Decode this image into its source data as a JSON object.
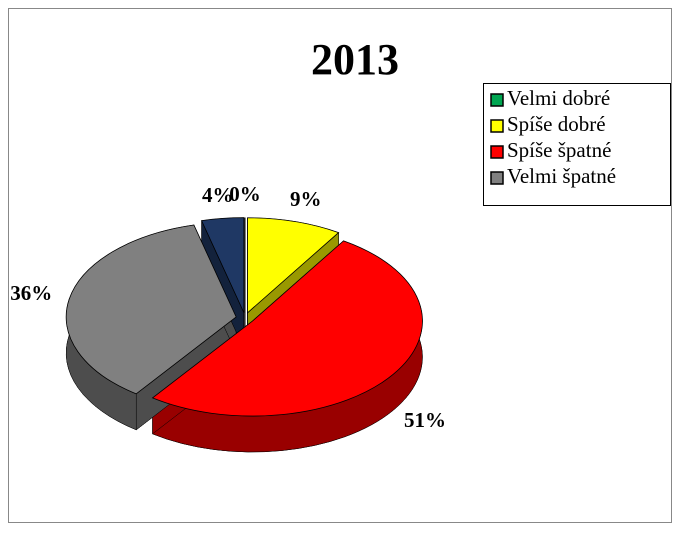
{
  "chart_data": {
    "type": "pie3d",
    "title": "2013",
    "categories": [
      "Velmi dobré",
      "Spíše dobré",
      "Spíše špatné",
      "Velmi špatné",
      null
    ],
    "values": [
      0,
      9,
      51,
      36,
      4
    ],
    "value_labels": [
      "0%",
      "9%",
      "51%",
      "36%",
      "4%"
    ],
    "colors": [
      "#00a651",
      "#ffff00",
      "#ff0000",
      "#808080",
      "#1f3864"
    ],
    "legend": "top-right"
  }
}
